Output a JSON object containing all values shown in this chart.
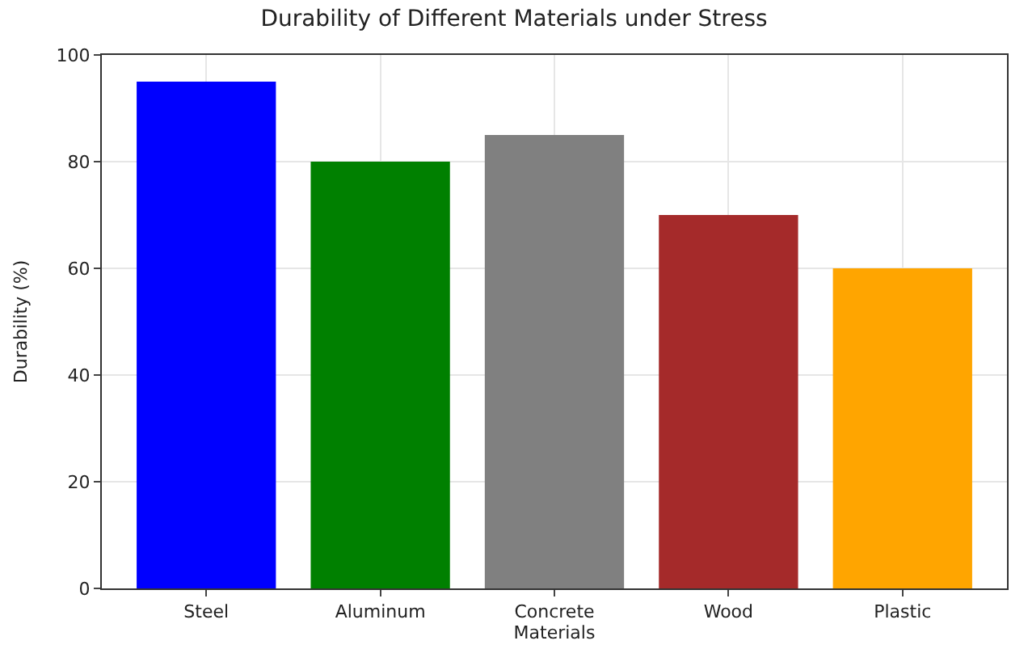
{
  "chart_data": {
    "type": "bar",
    "title": "Durability of Different Materials under Stress",
    "xlabel": "Materials",
    "ylabel": "Durability (%)",
    "categories": [
      "Steel",
      "Aluminum",
      "Concrete",
      "Wood",
      "Plastic"
    ],
    "values": [
      95,
      80,
      85,
      70,
      60
    ],
    "colors": [
      "#0000ff",
      "#008000",
      "#808080",
      "#a52a2a",
      "#ffa500"
    ],
    "ylim": [
      0,
      100
    ],
    "yticks": [
      0,
      20,
      40,
      60,
      80,
      100
    ],
    "grid": true
  }
}
